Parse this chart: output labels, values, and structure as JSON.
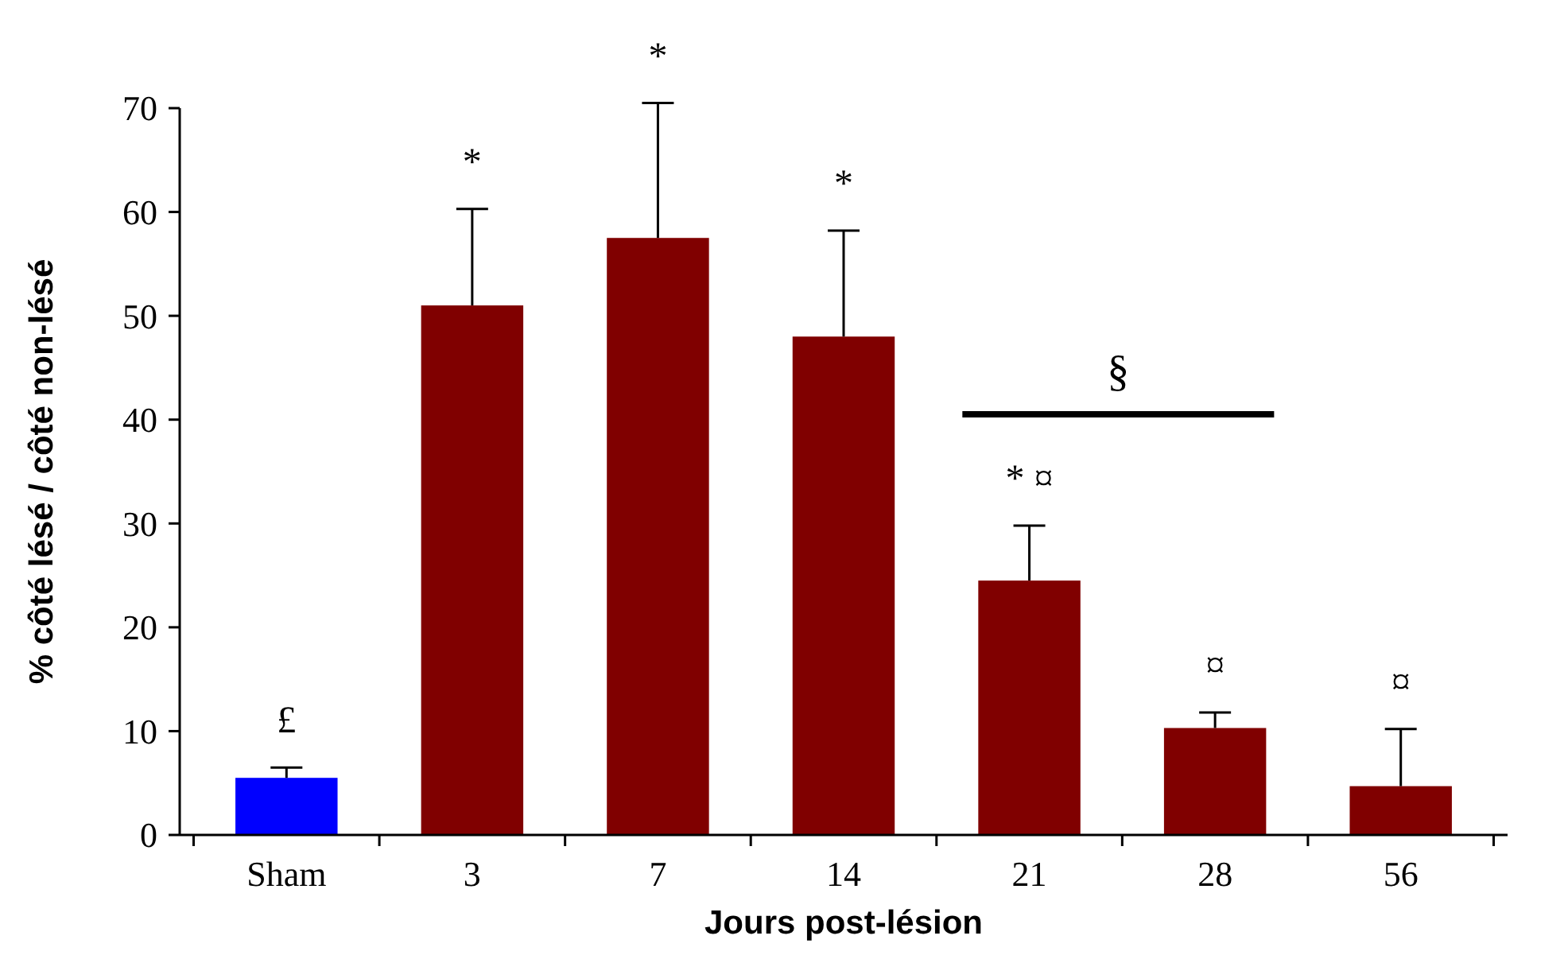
{
  "chart_data": {
    "type": "bar",
    "xlabel": "Jours post-lésion",
    "ylabel": "% côté lésé / côté non-lésé",
    "categories": [
      "Sham",
      "3",
      "7",
      "14",
      "21",
      "28",
      "56"
    ],
    "values": [
      5.5,
      51,
      57.5,
      48,
      24.5,
      10.3,
      4.7
    ],
    "errors": [
      1,
      9.3,
      13,
      10.2,
      5.3,
      1.5,
      5.5
    ],
    "colors": [
      "#0000ff",
      "#800000",
      "#800000",
      "#800000",
      "#800000",
      "#800000",
      "#800000"
    ],
    "ylim": [
      0,
      70
    ],
    "yticks": [
      0,
      10,
      20,
      30,
      40,
      50,
      60,
      70
    ],
    "grid": false,
    "annotations": [
      "£",
      "*",
      "*",
      "*",
      "* ¤",
      "¤",
      "¤",
      "§"
    ]
  }
}
